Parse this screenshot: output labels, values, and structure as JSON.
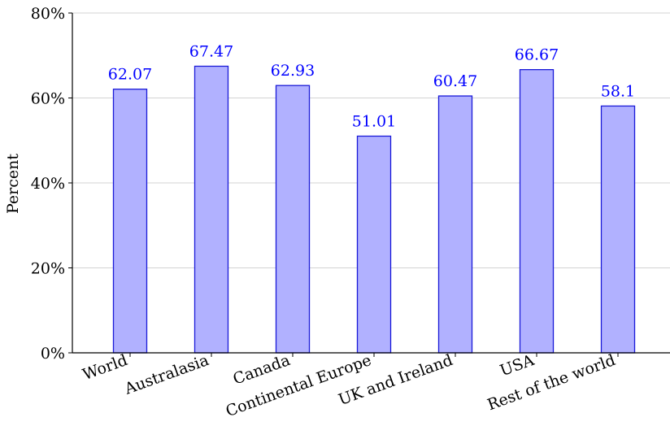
{
  "chart_data": {
    "type": "bar",
    "categories": [
      "World",
      "Australasia",
      "Canada",
      "Continental Europe",
      "UK and Ireland",
      "USA",
      "Rest of the world"
    ],
    "values": [
      62.07,
      67.47,
      62.93,
      51.01,
      60.47,
      66.67,
      58.1
    ],
    "value_labels": [
      "62.07",
      "67.47",
      "62.93",
      "51.01",
      "60.47",
      "66.67",
      "58.1"
    ],
    "title": "",
    "xlabel": "",
    "ylabel": "Percent",
    "ylim": [
      0,
      80
    ],
    "yticks": [
      0,
      20,
      40,
      60,
      80
    ],
    "ytick_labels": [
      "0%",
      "20%",
      "40%",
      "60%",
      "80%"
    ],
    "grid": "horizontal",
    "colors": {
      "bar_fill": "#b1b1ff",
      "bar_edge": "#1a1ad8",
      "data_label": "#0000ff"
    }
  }
}
